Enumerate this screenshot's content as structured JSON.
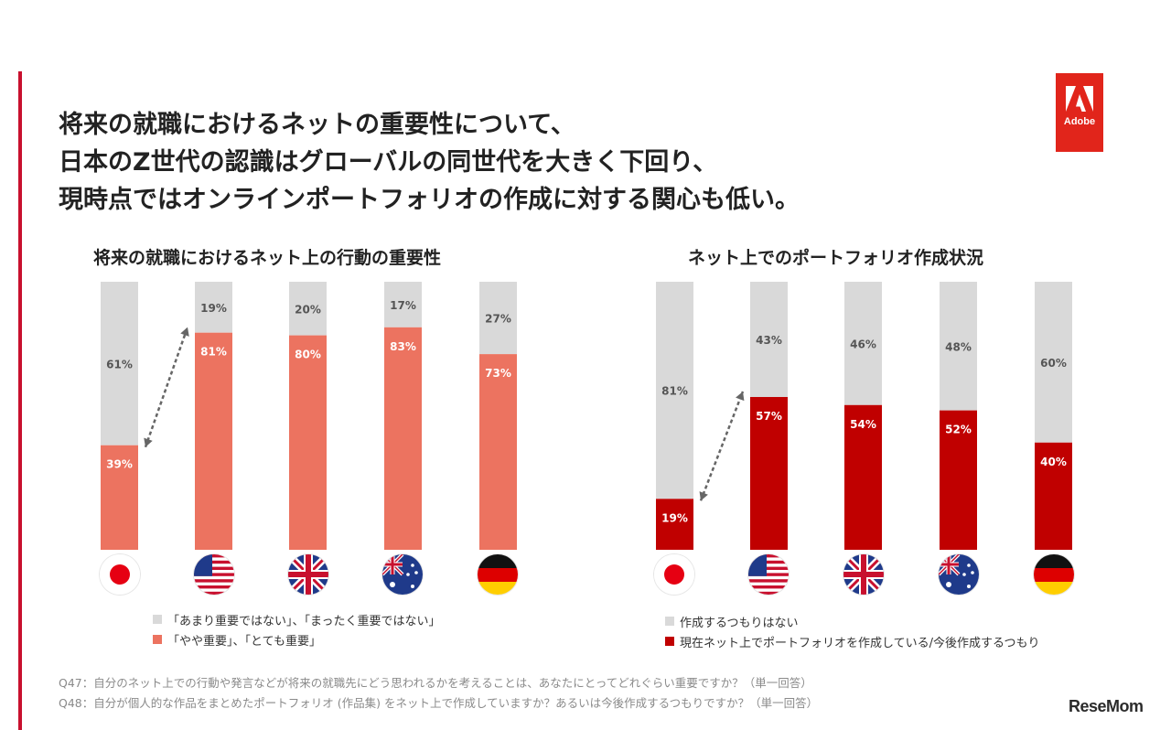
{
  "headline": {
    "line1": "将来の就職におけるネットの重要性について、",
    "line2": "日本のZ世代の認識はグローバルの同世代を大きく下回り、",
    "line3": "現時点ではオンラインポートフォリオの作成に対する関心も低い。"
  },
  "logo": {
    "text": "Adobe"
  },
  "colors": {
    "accent": "#c8102e",
    "gray": "#d9d9d9",
    "salmon": "#ec7360",
    "red": "#c00000",
    "logo": "#e1251b"
  },
  "countries": [
    "Japan",
    "United States",
    "United Kingdom",
    "Australia",
    "Germany"
  ],
  "chart_data": [
    {
      "type": "bar",
      "stacked": true,
      "title": "将来の就職におけるネット上の行動の重要性",
      "categories": [
        "Japan",
        "United States",
        "United Kingdom",
        "Australia",
        "Germany"
      ],
      "series": [
        {
          "name": "「やや重要」、「とても重要」",
          "values": [
            39,
            81,
            80,
            83,
            73
          ],
          "color": "#ec7360"
        },
        {
          "name": "「あまり重要ではない」、「まったく重要ではない」",
          "values": [
            61,
            19,
            20,
            17,
            27
          ],
          "color": "#d9d9d9"
        }
      ],
      "unit": "%",
      "ylim": [
        0,
        100
      ]
    },
    {
      "type": "bar",
      "stacked": true,
      "title": "ネット上でのポートフォリオ作成状況",
      "categories": [
        "Japan",
        "United States",
        "United Kingdom",
        "Australia",
        "Germany"
      ],
      "series": [
        {
          "name": "現在ネット上でポートフォリオを作成している/今後作成するつもり",
          "values": [
            19,
            57,
            54,
            52,
            40
          ],
          "color": "#c00000"
        },
        {
          "name": "作成するつもりはない",
          "values": [
            81,
            43,
            46,
            48,
            60
          ],
          "color": "#d9d9d9"
        }
      ],
      "unit": "%",
      "ylim": [
        0,
        100
      ]
    }
  ],
  "legend_left": {
    "gray": "「あまり重要ではない」、「まったく重要ではない」",
    "colored": "「やや重要」、「とても重要」"
  },
  "legend_right": {
    "gray": "作成するつもりはない",
    "colored": "現在ネット上でポートフォリオを作成している/今後作成するつもり"
  },
  "footnotes": {
    "q47": "Q47：自分のネット上での行動や発言などが将来の就職先にどう思われるかを考えることは、あなたにとってどれぐらい重要ですか？（単一回答）",
    "q48": "Q48：自分が個人的な作品をまとめたポートフォリオ (作品集) をネット上で作成していますか？あるいは今後作成するつもりですか？（単一回答）"
  },
  "watermark": "ReseMom"
}
